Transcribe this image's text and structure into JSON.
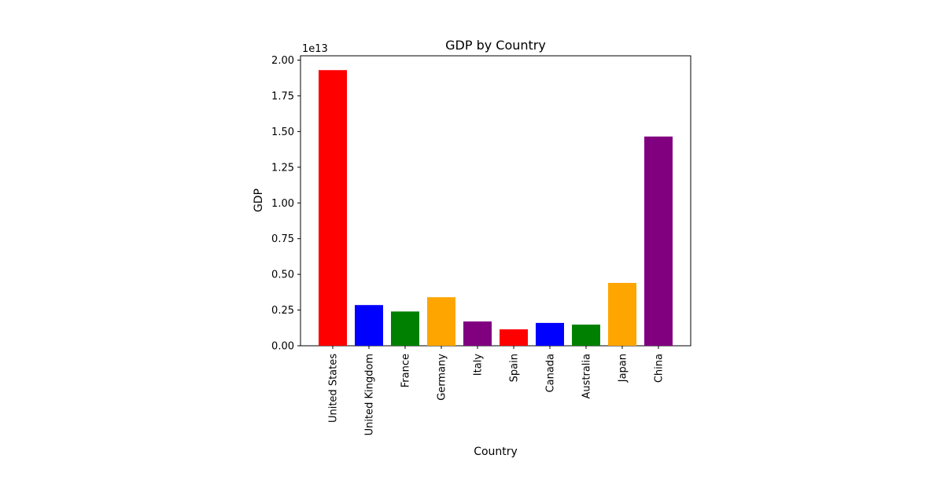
{
  "chart_data": {
    "type": "bar",
    "title": "GDP by Country",
    "xlabel": "Country",
    "ylabel": "GDP",
    "y_offset_label": "1e13",
    "ylim": [
      0,
      2.0
    ],
    "yticks": [
      "0.00",
      "0.25",
      "0.50",
      "0.75",
      "1.00",
      "1.25",
      "1.50",
      "1.75",
      "2.00"
    ],
    "categories": [
      "United States",
      "United Kingdom",
      "France",
      "Germany",
      "Italy",
      "Spain",
      "Canada",
      "Australia",
      "Japan",
      "China"
    ],
    "values": [
      1.93,
      0.285,
      0.24,
      0.34,
      0.17,
      0.115,
      0.16,
      0.148,
      0.44,
      1.465
    ],
    "colors": [
      "#ff0000",
      "#0000ff",
      "#008000",
      "#ffa500",
      "#800080",
      "#ff0000",
      "#0000ff",
      "#008000",
      "#ffa500",
      "#800080"
    ],
    "grid": false,
    "legend": "none"
  }
}
